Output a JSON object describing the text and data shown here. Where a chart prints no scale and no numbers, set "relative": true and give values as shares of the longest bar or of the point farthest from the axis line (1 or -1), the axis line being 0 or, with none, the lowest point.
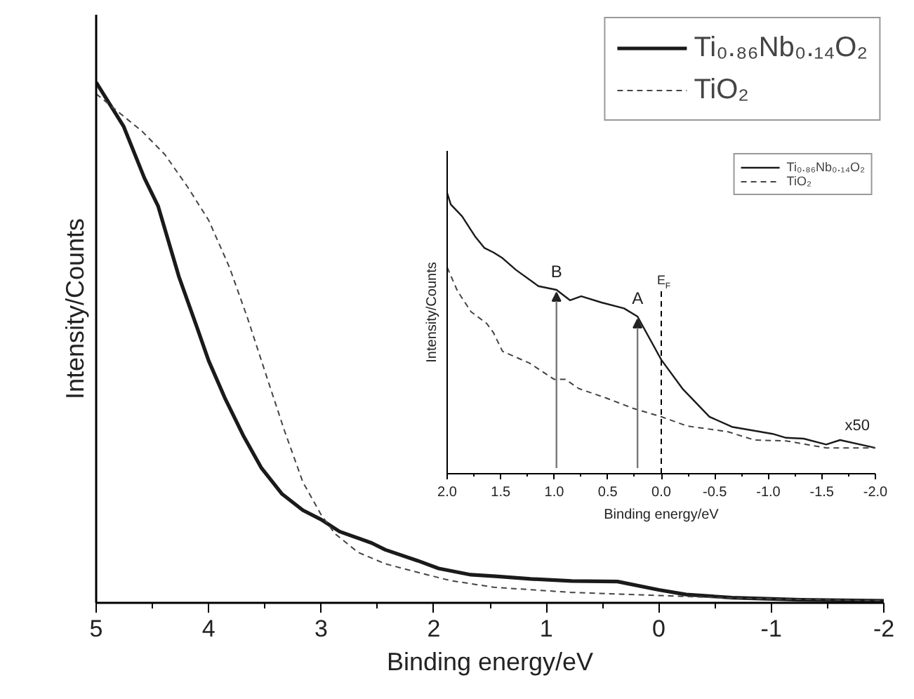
{
  "chart_data": [
    {
      "type": "line",
      "relative": true,
      "xlabel": "Binding energy/eV",
      "ylabel": "Intensity/Counts",
      "xlim": [
        5,
        -2
      ],
      "xticks": [
        5,
        {
          "value": 4.5,
          "label": null
        },
        4,
        {
          "value": 3.5,
          "label": null
        },
        3,
        {
          "value": 2.5,
          "label": null
        },
        2,
        {
          "value": 1.5,
          "label": null
        },
        1,
        {
          "value": 0.5,
          "label": null
        },
        0,
        {
          "value": -0.5,
          "label": null
        },
        -1,
        {
          "value": -1.5,
          "label": null
        },
        -2
      ],
      "legend": "top right",
      "grid": false,
      "marker": "none",
      "series": [
        {
          "name": "Ti₀.₈₆Nb₀.₁₄O₂",
          "color": "#1a1a1a",
          "line_style": "solid",
          "x": [
            5,
            4.755,
            4.571,
            4.449,
            4.265,
            4.102,
            4.0,
            3.857,
            3.694,
            3.531,
            3.347,
            3.163,
            3.0,
            2.837,
            2.551,
            2.43,
            2.143,
            1.956,
            1.67,
            1.45,
            1.14,
            0.774,
            0.367,
            0,
            -0.244,
            -0.65,
            -1.26,
            -2
          ],
          "values": [
            1.0,
            0.915,
            0.816,
            0.762,
            0.627,
            0.528,
            0.465,
            0.394,
            0.322,
            0.259,
            0.209,
            0.178,
            0.16,
            0.137,
            0.115,
            0.102,
            0.081,
            0.066,
            0.054,
            0.051,
            0.046,
            0.042,
            0.041,
            0.025,
            0.016,
            0.01,
            0.006,
            0.004
          ]
        },
        {
          "name": "TiO₂",
          "color": "#444444",
          "line_style": "dashed",
          "x": [
            5,
            4.796,
            4.592,
            4.388,
            4.184,
            4.0,
            3.816,
            3.653,
            3.49,
            3.327,
            3.163,
            3.0,
            2.878,
            2.673,
            2.43,
            2.184,
            1.857,
            1.467,
            0.774,
            0,
            -0.65,
            -2
          ],
          "values": [
            0.978,
            0.942,
            0.906,
            0.861,
            0.798,
            0.735,
            0.645,
            0.546,
            0.438,
            0.331,
            0.232,
            0.169,
            0.133,
            0.097,
            0.075,
            0.061,
            0.043,
            0.03,
            0.02,
            0.014,
            0.009,
            0.004
          ]
        }
      ]
    },
    {
      "type": "line",
      "relative": true,
      "xlabel": "Binding energy/eV",
      "ylabel": "Intensity/Counts",
      "xlim": [
        2,
        -2
      ],
      "xticks": [
        {
          "value": 2,
          "label": "2.0"
        },
        {
          "value": 1.75,
          "label": null
        },
        {
          "value": 1.5,
          "label": "1.5"
        },
        {
          "value": 1.25,
          "label": null
        },
        {
          "value": 1,
          "label": "1.0"
        },
        {
          "value": 0.75,
          "label": null
        },
        {
          "value": 0.5,
          "label": "0.5"
        },
        {
          "value": 0.25,
          "label": null
        },
        {
          "value": 0,
          "label": "0.0"
        },
        {
          "value": -0.25,
          "label": null
        },
        {
          "value": -0.5,
          "label": "-0.5"
        },
        {
          "value": -0.75,
          "label": null
        },
        {
          "value": -1,
          "label": "-1.0"
        },
        {
          "value": -1.25,
          "label": null
        },
        {
          "value": -1.5,
          "label": "-1.5"
        },
        {
          "value": -1.75,
          "label": null
        },
        {
          "value": -2,
          "label": "-2.0"
        }
      ],
      "legend": "top right",
      "grid": false,
      "marker": "none",
      "series": [
        {
          "name": "Ti₀.₈₆Nb₀.₁₄O₂",
          "color": "#1a1a1a",
          "line_style": "solid",
          "x": [
            2.0,
            1.966,
            1.861,
            1.735,
            1.651,
            1.567,
            1.483,
            1.357,
            1.147,
            0.979,
            0.853,
            0.748,
            0.559,
            0.348,
            0.222,
            0.0,
            -0.198,
            -0.45,
            -0.66,
            -1.04,
            -1.165,
            -1.33,
            -1.54,
            -1.67,
            -2.0
          ],
          "values": [
            1.0,
            0.959,
            0.917,
            0.843,
            0.804,
            0.788,
            0.768,
            0.726,
            0.668,
            0.655,
            0.618,
            0.632,
            0.61,
            0.589,
            0.56,
            0.406,
            0.303,
            0.203,
            0.167,
            0.142,
            0.128,
            0.125,
            0.104,
            0.12,
            0.092
          ]
        },
        {
          "name": "TiO₂",
          "color": "#444444",
          "line_style": "dashed",
          "x": [
            2.0,
            1.904,
            1.777,
            1.63,
            1.567,
            1.483,
            1.231,
            1.0,
            0.895,
            0.769,
            0.517,
            0.265,
            0.0,
            -0.24,
            -0.618,
            -0.87,
            -1.165,
            -1.54,
            -2.0
          ],
          "values": [
            0.735,
            0.651,
            0.577,
            0.535,
            0.502,
            0.436,
            0.394,
            0.336,
            0.336,
            0.303,
            0.27,
            0.233,
            0.203,
            0.17,
            0.15,
            0.12,
            0.117,
            0.092,
            0.092
          ]
        }
      ],
      "ref_lines": [
        {
          "axis": "x",
          "value": 0,
          "label": "E$_{F}$",
          "line_style": "dashed",
          "color": "#000000"
        }
      ],
      "annotations": [
        {
          "text": "B",
          "x": 0.979,
          "y": 0.655
        },
        {
          "text": "A",
          "x": 0.222,
          "y": 0.56
        },
        "x50"
      ]
    }
  ]
}
